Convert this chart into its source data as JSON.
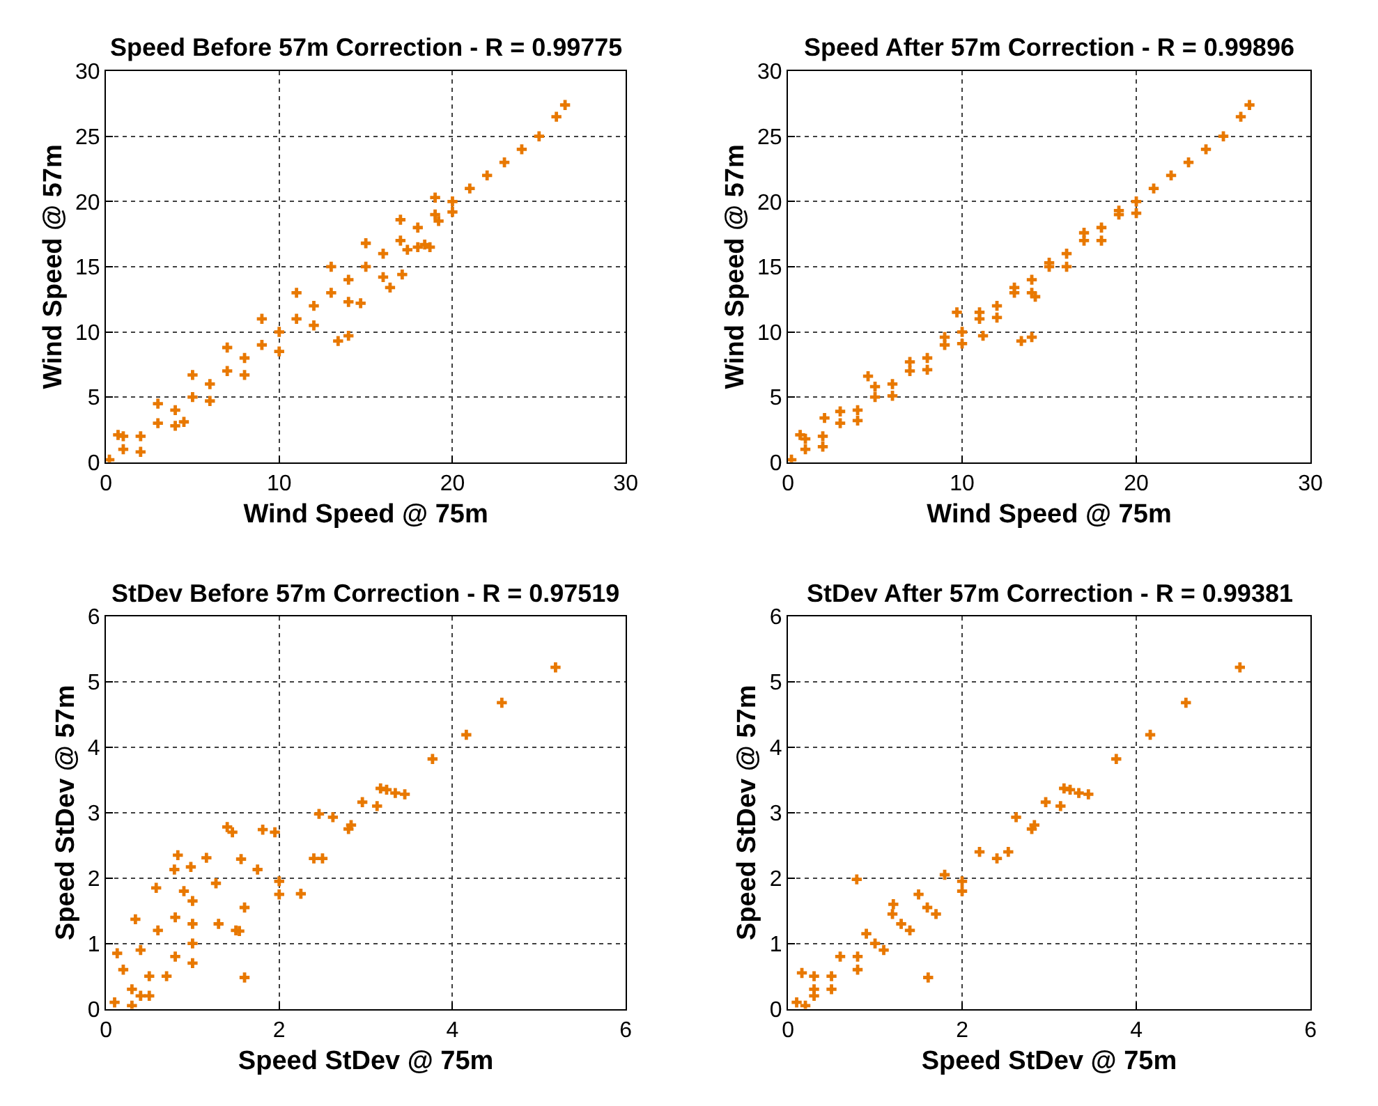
{
  "chart_data": [
    {
      "type": "scatter",
      "title": "Speed Before 57m Correction - R = 0.99775",
      "xlabel": "Wind Speed @ 75m",
      "ylabel": "Wind Speed @ 57m",
      "color": "#e87800",
      "marker": "cross",
      "grid": true,
      "xlim": [
        0,
        30
      ],
      "ylim": [
        0,
        30
      ],
      "xticks": [
        0,
        10,
        20,
        30
      ],
      "yticks": [
        0,
        5,
        10,
        15,
        20,
        25,
        30
      ],
      "x": [
        0.2,
        1,
        2,
        3,
        4,
        5,
        6,
        7,
        8,
        9,
        10,
        11,
        12,
        13,
        14,
        15,
        16,
        17,
        18,
        19,
        20,
        21,
        22,
        23,
        24,
        25,
        26,
        26.5,
        1,
        3,
        5,
        7,
        9,
        11,
        13,
        15,
        17,
        19,
        2,
        4,
        6,
        8,
        10,
        12,
        14,
        16,
        18,
        20,
        13.4,
        14.0,
        14.7,
        17.1,
        16.4,
        18.4,
        18.7,
        19.2,
        17.4,
        4.5,
        0.7
      ],
      "values": [
        0.2,
        1,
        2,
        3,
        4,
        5,
        6,
        7,
        8,
        9,
        10,
        11,
        12,
        13,
        14,
        15,
        16,
        17,
        18,
        19,
        20,
        21,
        22,
        23,
        24,
        25,
        26.5,
        27.4,
        2,
        4.5,
        6.7,
        8.8,
        11,
        13,
        15,
        16.8,
        18.6,
        20.3,
        0.8,
        2.8,
        4.7,
        6.7,
        8.5,
        10.5,
        12.3,
        14.2,
        16.5,
        19.2,
        9.3,
        9.7,
        12.2,
        14.4,
        13.4,
        16.7,
        16.5,
        18.5,
        16.3,
        3.1,
        2.1
      ]
    },
    {
      "type": "scatter",
      "title": "Speed After 57m Correction - R = 0.99896",
      "xlabel": "Wind Speed @ 75m",
      "ylabel": "Wind Speed @ 57m",
      "color": "#e87800",
      "marker": "cross",
      "grid": true,
      "xlim": [
        0,
        30
      ],
      "ylim": [
        0,
        30
      ],
      "xticks": [
        0,
        10,
        20,
        30
      ],
      "yticks": [
        0,
        5,
        10,
        15,
        20,
        25,
        30
      ],
      "x": [
        0.2,
        1,
        2,
        3,
        4,
        5,
        6,
        7,
        8,
        9,
        10,
        11,
        12,
        13,
        14,
        15,
        16,
        17,
        18,
        19,
        20,
        21,
        22,
        23,
        24,
        25,
        26,
        26.5,
        1,
        3,
        5,
        7,
        9,
        11,
        13,
        15,
        17,
        19,
        2,
        4,
        6,
        8,
        10,
        12,
        14,
        16,
        18,
        20,
        14.2,
        11.2,
        13.4,
        14.0,
        2.1,
        4.6,
        9.7,
        0.7
      ],
      "values": [
        0.2,
        1,
        2,
        3,
        4,
        5,
        6,
        7,
        8,
        9,
        10,
        11,
        12,
        13,
        14,
        15,
        16,
        17,
        18,
        19,
        20,
        21,
        22,
        23,
        24,
        25,
        26.5,
        27.4,
        1.8,
        3.9,
        5.8,
        7.7,
        9.6,
        11.5,
        13.4,
        15.3,
        17.6,
        19.3,
        1.2,
        3.2,
        5.1,
        7.1,
        9.1,
        11.1,
        13.0,
        15.0,
        17.0,
        19.1,
        12.7,
        9.7,
        9.3,
        9.6,
        3.4,
        6.6,
        11.5,
        2.1
      ]
    },
    {
      "type": "scatter",
      "title": "StDev Before 57m Correction - R = 0.97519",
      "xlabel": "Speed StDev @ 75m",
      "ylabel": "Speed StDev @ 57m",
      "color": "#e87800",
      "marker": "cross",
      "grid": true,
      "xlim": [
        0,
        6
      ],
      "ylim": [
        0,
        6
      ],
      "xticks": [
        0,
        2,
        4,
        6
      ],
      "yticks": [
        0,
        1,
        2,
        3,
        4,
        5,
        6
      ],
      "x": [
        5.19,
        4.57,
        4.16,
        3.77,
        3.45,
        3.34,
        3.24,
        3.17,
        3.13,
        2.83,
        2.46,
        2.62,
        2.96,
        0.1,
        0.3,
        0.5,
        0.8,
        1,
        1.3,
        1.6,
        2,
        2.4,
        2.8,
        0.5,
        1,
        1.5,
        2,
        2.5,
        0.3,
        1.6,
        0.83,
        1.4,
        1.46,
        1.81,
        1.95,
        1.16,
        0.79,
        0.98,
        1.56,
        0.58,
        0.34,
        0.13,
        1.27,
        1.75,
        1.0,
        2.25,
        1.54,
        0.2,
        0.4,
        0.6,
        0.8,
        0.4,
        0.7,
        1.0,
        0.9
      ],
      "values": [
        5.22,
        4.68,
        4.19,
        3.82,
        3.28,
        3.3,
        3.35,
        3.37,
        3.1,
        2.81,
        2.98,
        2.93,
        3.16,
        0.1,
        0.3,
        0.5,
        0.8,
        1,
        1.3,
        1.55,
        1.95,
        2.3,
        2.75,
        0.2,
        0.7,
        1.2,
        1.75,
        2.3,
        0.05,
        0.48,
        2.35,
        2.78,
        2.7,
        2.74,
        2.7,
        2.31,
        2.13,
        2.17,
        2.29,
        1.85,
        1.37,
        0.85,
        1.92,
        2.13,
        1.65,
        1.76,
        1.19,
        0.6,
        0.9,
        1.2,
        1.4,
        0.2,
        0.5,
        1.3,
        1.8
      ]
    },
    {
      "type": "scatter",
      "title": "StDev After 57m Correction - R = 0.99381",
      "xlabel": "Speed StDev @ 75m",
      "ylabel": "Speed StDev @ 57m",
      "color": "#e87800",
      "marker": "cross",
      "grid": true,
      "xlim": [
        0,
        6
      ],
      "ylim": [
        0,
        6
      ],
      "xticks": [
        0,
        2,
        4,
        6
      ],
      "yticks": [
        0,
        1,
        2,
        3,
        4,
        5,
        6
      ],
      "x": [
        5.19,
        4.57,
        4.16,
        3.77,
        3.45,
        3.34,
        3.24,
        3.17,
        3.13,
        2.83,
        2.62,
        2.96,
        0.1,
        0.3,
        0.5,
        0.8,
        1,
        1.3,
        1.6,
        2,
        2.4,
        2.8,
        0.3,
        0.6,
        0.9,
        1.2,
        1.5,
        1.8,
        2.2,
        0.2,
        0.5,
        0.8,
        1.1,
        1.4,
        1.7,
        2.0,
        0.79,
        1.61,
        0.16,
        0.3,
        1.21,
        2.53
      ],
      "values": [
        5.22,
        4.68,
        4.19,
        3.82,
        3.28,
        3.3,
        3.35,
        3.37,
        3.1,
        2.81,
        2.93,
        3.16,
        0.1,
        0.3,
        0.5,
        0.8,
        1,
        1.3,
        1.55,
        1.95,
        2.3,
        2.75,
        0.5,
        0.8,
        1.15,
        1.45,
        1.75,
        2.05,
        2.4,
        0.05,
        0.3,
        0.6,
        0.9,
        1.2,
        1.45,
        1.8,
        1.98,
        0.48,
        0.55,
        0.2,
        1.6,
        2.4
      ]
    }
  ]
}
